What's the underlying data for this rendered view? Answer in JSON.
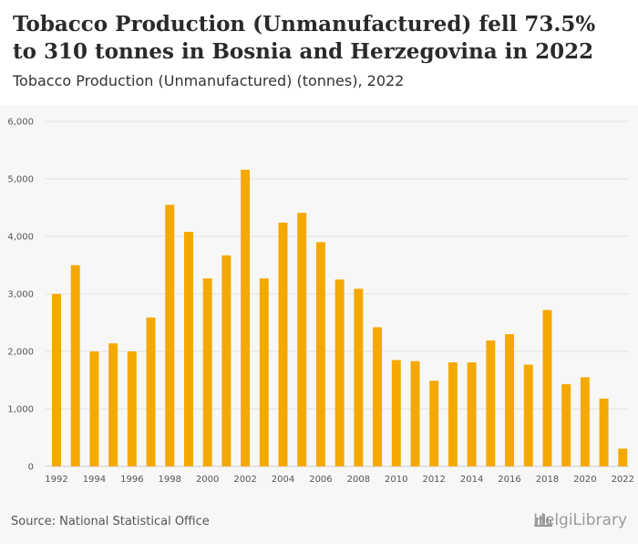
{
  "header": {
    "title": "Tobacco Production (Unmanufactured) fell 73.5% to 310 tonnes in Bosnia and Herzegovina in 2022",
    "subtitle": "Tobacco Production (Unmanufactured) (tonnes), 2022"
  },
  "footer": {
    "source": "Source: National Statistical Office",
    "brand": "HelgiLibrary",
    "brand_icon": "library-building-icon"
  },
  "colors": {
    "bar": "#f5a800",
    "grid": "#e2e2e2",
    "background": "#f7f7f7"
  },
  "chart_data": {
    "type": "bar",
    "title": "Tobacco Production (Unmanufactured) (tonnes), 2022",
    "xlabel": "",
    "ylabel": "",
    "ylim": [
      0,
      6000
    ],
    "yticks": [
      "0",
      "1,000",
      "2,000",
      "3,000",
      "4,000",
      "5,000",
      "6,000"
    ],
    "xtick_labels": [
      "1992",
      "1994",
      "1996",
      "1998",
      "2000",
      "2002",
      "2004",
      "2006",
      "2008",
      "2010",
      "2012",
      "2014",
      "2016",
      "2018",
      "2020",
      "2022"
    ],
    "categories": [
      "1992",
      "1993",
      "1994",
      "1995",
      "1996",
      "1997",
      "1998",
      "1999",
      "2000",
      "2001",
      "2002",
      "2003",
      "2004",
      "2005",
      "2006",
      "2007",
      "2008",
      "2009",
      "2010",
      "2011",
      "2012",
      "2013",
      "2014",
      "2015",
      "2016",
      "2017",
      "2018",
      "2019",
      "2020",
      "2021",
      "2022"
    ],
    "values": [
      3000,
      3500,
      2000,
      2140,
      2000,
      2590,
      4550,
      4080,
      3270,
      3670,
      5160,
      3270,
      4240,
      4410,
      3900,
      3250,
      3090,
      2420,
      1850,
      1830,
      1490,
      1810,
      1810,
      2190,
      2300,
      1770,
      2720,
      1430,
      1550,
      1180,
      310
    ],
    "grid": true,
    "legend": "none"
  }
}
